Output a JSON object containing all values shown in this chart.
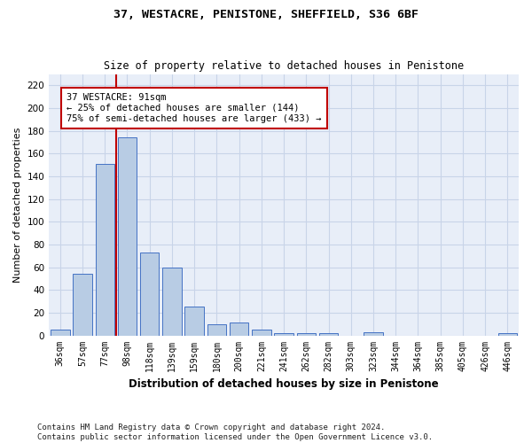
{
  "title1": "37, WESTACRE, PENISTONE, SHEFFIELD, S36 6BF",
  "title2": "Size of property relative to detached houses in Penistone",
  "xlabel": "Distribution of detached houses by size in Penistone",
  "ylabel": "Number of detached properties",
  "categories": [
    "36sqm",
    "57sqm",
    "77sqm",
    "98sqm",
    "118sqm",
    "139sqm",
    "159sqm",
    "180sqm",
    "200sqm",
    "221sqm",
    "241sqm",
    "262sqm",
    "282sqm",
    "303sqm",
    "323sqm",
    "344sqm",
    "364sqm",
    "385sqm",
    "405sqm",
    "426sqm",
    "446sqm"
  ],
  "values": [
    5,
    54,
    151,
    174,
    73,
    60,
    25,
    10,
    11,
    5,
    2,
    2,
    2,
    0,
    3,
    0,
    0,
    0,
    0,
    0,
    2
  ],
  "bar_color": "#b8cce4",
  "bar_edge_color": "#4472c4",
  "vline_color": "#c00000",
  "annotation_text": "37 WESTACRE: 91sqm\n← 25% of detached houses are smaller (144)\n75% of semi-detached houses are larger (433) →",
  "annotation_box_color": "#ffffff",
  "annotation_box_edge": "#c00000",
  "ylim": [
    0,
    230
  ],
  "yticks": [
    0,
    20,
    40,
    60,
    80,
    100,
    120,
    140,
    160,
    180,
    200,
    220
  ],
  "grid_color": "#c8d4e8",
  "background_color": "#e8eef8",
  "footer_line1": "Contains HM Land Registry data © Crown copyright and database right 2024.",
  "footer_line2": "Contains public sector information licensed under the Open Government Licence v3.0."
}
